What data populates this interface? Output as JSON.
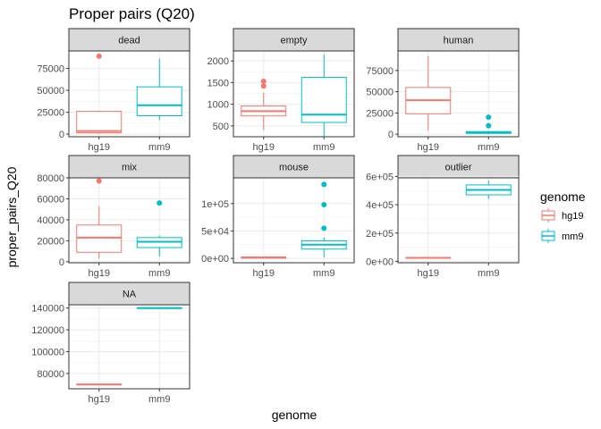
{
  "chart_data": {
    "type": "boxplot",
    "title": "Proper pairs (Q20)",
    "xlabel": "genome",
    "ylabel": "proper_pairs_Q20",
    "categories": [
      "hg19",
      "mm9"
    ],
    "legend": {
      "title": "genome",
      "position": "right",
      "entries": [
        {
          "label": "hg19",
          "color": "#F8766D"
        },
        {
          "label": "mm9",
          "color": "#00BFC4"
        }
      ]
    },
    "grid": true,
    "facets": [
      {
        "label": "dead",
        "ylim": [
          -3000,
          95000
        ],
        "yticks": [
          0,
          25000,
          50000,
          75000
        ],
        "ytick_labels": [
          "0",
          "25000",
          "50000",
          "75000"
        ],
        "boxes": [
          {
            "genome": "hg19",
            "min": 0,
            "q1": 1500,
            "median": 3500,
            "q3": 26000,
            "max": 27000,
            "outliers": [
              89000
            ]
          },
          {
            "genome": "mm9",
            "min": 16000,
            "q1": 21000,
            "median": 33000,
            "q3": 54000,
            "max": 86000,
            "outliers": []
          }
        ]
      },
      {
        "label": "empty",
        "ylim": [
          250,
          2230
        ],
        "yticks": [
          500,
          1000,
          1500,
          2000
        ],
        "ytick_labels": [
          "500",
          "1000",
          "1500",
          "2000"
        ],
        "boxes": [
          {
            "genome": "hg19",
            "min": 400,
            "q1": 730,
            "median": 840,
            "q3": 960,
            "max": 1270,
            "outliers": [
              1420,
              1530
            ]
          },
          {
            "genome": "mm9",
            "min": 200,
            "q1": 580,
            "median": 760,
            "q3": 1620,
            "max": 2150,
            "outliers": []
          }
        ]
      },
      {
        "label": "human",
        "ylim": [
          -3000,
          98000
        ],
        "yticks": [
          0,
          25000,
          50000,
          75000
        ],
        "ytick_labels": [
          "0",
          "25000",
          "50000",
          "75000"
        ],
        "boxes": [
          {
            "genome": "hg19",
            "min": 4000,
            "q1": 24000,
            "median": 40000,
            "q3": 55000,
            "max": 92000,
            "outliers": []
          },
          {
            "genome": "mm9",
            "min": 0,
            "q1": 1000,
            "median": 2000,
            "q3": 3000,
            "max": 4000,
            "outliers": [
              10000,
              20000
            ]
          }
        ]
      },
      {
        "label": "mix",
        "ylim": [
          -1000,
          80000
        ],
        "yticks": [
          0,
          20000,
          40000,
          60000,
          80000
        ],
        "ytick_labels": [
          "0",
          "20000",
          "40000",
          "60000",
          "80000"
        ],
        "boxes": [
          {
            "genome": "hg19",
            "min": 3000,
            "q1": 9000,
            "median": 23000,
            "q3": 35000,
            "max": 53000,
            "outliers": [
              77000
            ]
          },
          {
            "genome": "mm9",
            "min": 5000,
            "q1": 13500,
            "median": 19000,
            "q3": 23000,
            "max": 25000,
            "outliers": [
              56000
            ]
          }
        ]
      },
      {
        "label": "mouse",
        "ylim": [
          -8000,
          147000
        ],
        "yticks": [
          0,
          50000,
          100000
        ],
        "ytick_labels": [
          "0e+00",
          "5e+04",
          "1e+05"
        ],
        "boxes": [
          {
            "genome": "hg19",
            "min": 0,
            "q1": 500,
            "median": 1500,
            "q3": 2500,
            "max": 3000,
            "outliers": []
          },
          {
            "genome": "mm9",
            "min": 2000,
            "q1": 17000,
            "median": 25000,
            "q3": 32000,
            "max": 38000,
            "outliers": [
              55000,
              98000,
              135000
            ]
          }
        ]
      },
      {
        "label": "outlier",
        "ylim": [
          -10000,
          590000
        ],
        "yticks": [
          0,
          200000,
          400000,
          600000
        ],
        "ytick_labels": [
          "0e+00",
          "2e+05",
          "4e+05",
          "6e+05"
        ],
        "boxes": [
          {
            "genome": "hg19",
            "min": 20000,
            "q1": 22000,
            "median": 25000,
            "q3": 28000,
            "max": 30000,
            "outliers": []
          },
          {
            "genome": "mm9",
            "min": 440000,
            "q1": 470000,
            "median": 505000,
            "q3": 540000,
            "max": 570000,
            "outliers": []
          }
        ]
      },
      {
        "label": "NA",
        "ylim": [
          66000,
          143000
        ],
        "yticks": [
          80000,
          100000,
          120000,
          140000
        ],
        "ytick_labels": [
          "80000",
          "100000",
          "120000",
          "140000"
        ],
        "boxes": [
          {
            "genome": "hg19",
            "min": 70000,
            "q1": 70000,
            "median": 70000,
            "q3": 70000,
            "max": 70000,
            "outliers": []
          },
          {
            "genome": "mm9",
            "min": 140000,
            "q1": 140000,
            "median": 140000,
            "q3": 140000,
            "max": 140000,
            "outliers": []
          }
        ]
      }
    ]
  }
}
